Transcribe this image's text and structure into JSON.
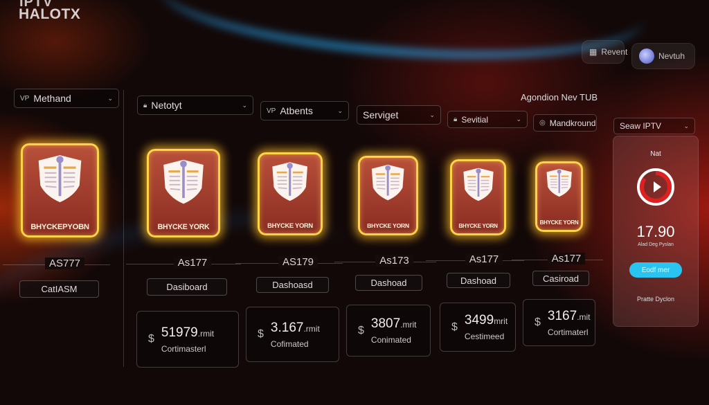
{
  "header": {
    "app_name_top": "IPTV",
    "app_name": "HALOTX",
    "recent_button": "Revent",
    "user_name": "Nevtuh"
  },
  "filters": [
    {
      "prefix": "VP",
      "label": "Methand",
      "icon": ""
    },
    {
      "prefix": "",
      "label": "Netotyt",
      "icon": "lock-icon"
    },
    {
      "prefix": "VP",
      "label": "Atbents",
      "icon": ""
    },
    {
      "prefix": "",
      "label": "Serviget",
      "icon": ""
    },
    {
      "prefix": "",
      "label": "Sevitial",
      "icon": "lock-icon"
    },
    {
      "prefix": "",
      "label": "Mandkround",
      "icon": "headset-icon"
    }
  ],
  "section_title": "Agondion Nev TUB",
  "channels": [
    {
      "badge": "BHYCKEPYOBN",
      "id": "AS777",
      "button": "CatIASM",
      "stat": null
    },
    {
      "badge": "BHYCKE YORK",
      "id": "As177",
      "button": "Dasiboard",
      "stat": {
        "value": "51979",
        "unit": ".rmit",
        "label": "Cortimasterl"
      }
    },
    {
      "badge": "BHYCKE YORN",
      "id": "AS179",
      "button": "Dashoasd",
      "stat": {
        "value": "3.167",
        "unit": ".rmit",
        "label": "Cofimated"
      }
    },
    {
      "badge": "BHYCKE YORN",
      "id": "As173",
      "button": "Dashoad",
      "stat": {
        "value": "3807",
        "unit": ".mrit",
        "label": "Conimated"
      }
    },
    {
      "badge": "BHYCKE YORN",
      "id": "As177",
      "button": "Dashoad",
      "stat": {
        "value": "3499",
        "unit": "mrit",
        "label": "Cestimeed"
      }
    },
    {
      "badge": "BHYCKE YORN",
      "id": "As177",
      "button": "Casiroad",
      "stat": {
        "value": "3167",
        "unit": ".mit",
        "label": "Cortimaterl"
      }
    }
  ],
  "side_panel": {
    "dropdown": "Seaw IPTV",
    "title": "Nat",
    "value": "17.90",
    "caption": "Alad Deg Pyslan",
    "action_button": "Eodf mer",
    "footer": "Pratte Dyclon",
    "gauge_fraction": 0.85
  },
  "colors": {
    "accent": "#29c4f0",
    "glow": "#ffd34a",
    "gauge": "#e02020"
  }
}
